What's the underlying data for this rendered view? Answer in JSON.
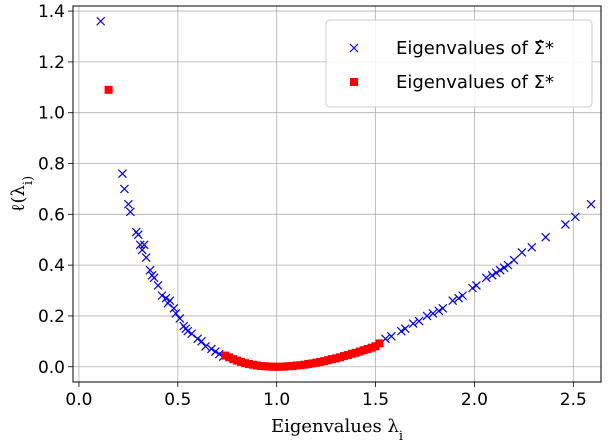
{
  "chart_data": {
    "type": "scatter",
    "xlabel": "Eigenvalues λ_i",
    "ylabel": "ℓ(λ_i)",
    "xlim": [
      -0.03,
      2.64
    ],
    "ylim": [
      -0.06,
      1.42
    ],
    "x_ticks": [
      0.0,
      0.5,
      1.0,
      1.5,
      2.0,
      2.5
    ],
    "x_tick_labels": [
      "0.0",
      "0.5",
      "1.0",
      "1.5",
      "2.0",
      "2.5"
    ],
    "y_ticks": [
      0.0,
      0.2,
      0.4,
      0.6,
      0.8,
      1.0,
      1.2,
      1.4
    ],
    "y_tick_labels": [
      "0.0",
      "0.2",
      "0.4",
      "0.6",
      "0.8",
      "1.0",
      "1.2",
      "1.4"
    ],
    "grid": true,
    "legend_position": "top-right",
    "series": [
      {
        "name": "Eigenvalues of Σ̂*",
        "marker": "x",
        "color": "#0000ff",
        "x": [
          0.11,
          0.22,
          0.23,
          0.25,
          0.26,
          0.29,
          0.3,
          0.31,
          0.32,
          0.33,
          0.34,
          0.36,
          0.37,
          0.38,
          0.4,
          0.42,
          0.44,
          0.45,
          0.46,
          0.48,
          0.49,
          0.51,
          0.53,
          0.54,
          0.55,
          0.57,
          0.6,
          0.62,
          0.64,
          0.67,
          0.69,
          0.71,
          0.73,
          1.55,
          1.58,
          1.63,
          1.65,
          1.69,
          1.72,
          1.76,
          1.79,
          1.82,
          1.84,
          1.89,
          1.92,
          1.94,
          1.99,
          2.01,
          2.06,
          2.09,
          2.11,
          2.13,
          2.15,
          2.17,
          2.2,
          2.24,
          2.29,
          2.36,
          2.46,
          2.51,
          2.59
        ],
        "y": [
          1.36,
          0.76,
          0.7,
          0.64,
          0.61,
          0.53,
          0.52,
          0.48,
          0.46,
          0.48,
          0.43,
          0.38,
          0.36,
          0.35,
          0.32,
          0.28,
          0.27,
          0.25,
          0.26,
          0.23,
          0.21,
          0.19,
          0.16,
          0.15,
          0.14,
          0.13,
          0.11,
          0.1,
          0.08,
          0.07,
          0.06,
          0.05,
          0.04,
          0.11,
          0.12,
          0.14,
          0.15,
          0.17,
          0.18,
          0.2,
          0.21,
          0.22,
          0.23,
          0.26,
          0.27,
          0.28,
          0.31,
          0.32,
          0.35,
          0.36,
          0.37,
          0.38,
          0.39,
          0.4,
          0.42,
          0.45,
          0.47,
          0.51,
          0.56,
          0.59,
          0.64
        ]
      },
      {
        "name": "Eigenvalues of Σ*",
        "marker": "s",
        "color": "#ff0000",
        "x": [
          0.15,
          0.74,
          0.76,
          0.78,
          0.8,
          0.82,
          0.84,
          0.86,
          0.88,
          0.9,
          0.92,
          0.94,
          0.96,
          0.98,
          1.0,
          1.02,
          1.04,
          1.06,
          1.08,
          1.1,
          1.12,
          1.14,
          1.16,
          1.18,
          1.2,
          1.22,
          1.24,
          1.26,
          1.28,
          1.3,
          1.32,
          1.34,
          1.36,
          1.38,
          1.4,
          1.42,
          1.44,
          1.46,
          1.48,
          1.5,
          1.52
        ],
        "y": [
          1.09,
          0.044,
          0.037,
          0.03,
          0.024,
          0.019,
          0.014,
          0.011,
          0.008,
          0.005,
          0.003,
          0.002,
          0.001,
          0.0,
          0.0,
          0.0,
          0.001,
          0.002,
          0.003,
          0.005,
          0.006,
          0.008,
          0.011,
          0.013,
          0.016,
          0.019,
          0.022,
          0.026,
          0.03,
          0.033,
          0.037,
          0.042,
          0.046,
          0.051,
          0.055,
          0.06,
          0.065,
          0.07,
          0.075,
          0.081,
          0.092
        ]
      }
    ]
  }
}
